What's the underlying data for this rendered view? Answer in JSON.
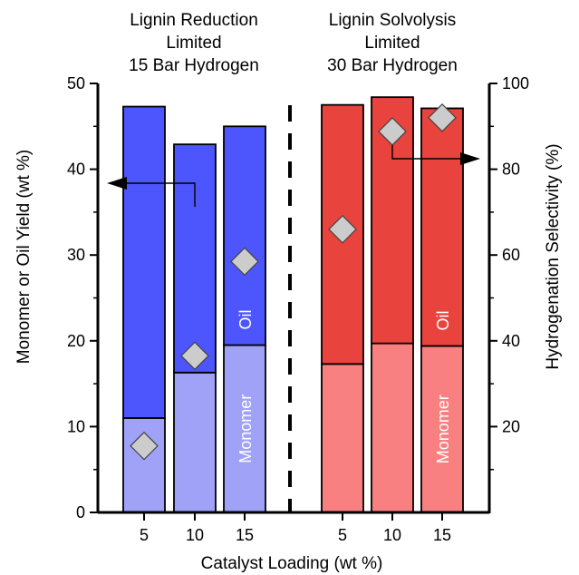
{
  "chart_data": {
    "type": "bar",
    "stacked": true,
    "xlabel": "Catalyst Loading (wt %)",
    "ylabel": "Monomer or Oil Yield (wt %)",
    "y2label": "Hydrogenation Selectivity (%)",
    "ylim": [
      0,
      50
    ],
    "y2lim": [
      0,
      100
    ],
    "yticks": [
      0,
      10,
      20,
      30,
      40,
      50
    ],
    "y2ticks": [
      20,
      40,
      60,
      80,
      100
    ],
    "groups": [
      {
        "title_lines": [
          "Lignin Reduction",
          "Limited",
          "15 Bar Hydrogen"
        ],
        "colors": {
          "monomer": "#a0a2f8",
          "oil": "#4d55fc"
        },
        "bar_labels": {
          "monomer": "Monomer",
          "oil": "Oil"
        },
        "categories": [
          "5",
          "10",
          "15"
        ],
        "monomer": [
          11.0,
          16.3,
          19.5
        ],
        "total": [
          47.3,
          42.9,
          45.0
        ],
        "selectivity": [
          15.5,
          36.5,
          58.5
        ]
      },
      {
        "title_lines": [
          "Lignin Solvolysis",
          "Limited",
          "30 Bar Hydrogen"
        ],
        "colors": {
          "monomer": "#f88080",
          "oil": "#e8433d"
        },
        "bar_labels": {
          "monomer": "Monomer",
          "oil": "Oil"
        },
        "categories": [
          "5",
          "10",
          "15"
        ],
        "monomer": [
          17.3,
          19.7,
          19.4
        ],
        "total": [
          47.5,
          48.4,
          47.1
        ],
        "selectivity": [
          66.0,
          88.8,
          92.0
        ]
      }
    ],
    "marker_color": "#cccccc"
  }
}
